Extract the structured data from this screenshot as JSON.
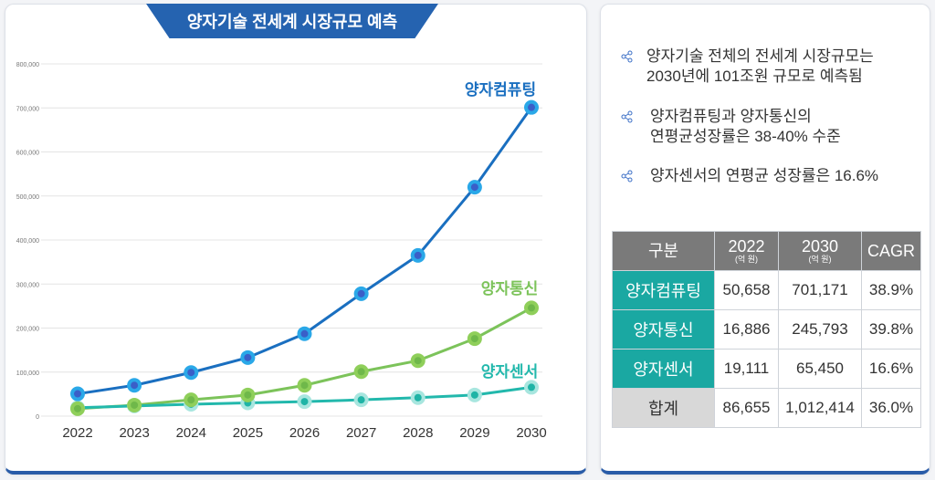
{
  "title": "양자기술 전세계 시장규모 예측",
  "chart_data": {
    "type": "line",
    "title": "양자기술 전세계 시장규모 예측",
    "x": [
      2022,
      2023,
      2024,
      2025,
      2026,
      2027,
      2028,
      2029,
      2030
    ],
    "ylim": [
      0,
      800000
    ],
    "yticks": [
      "0",
      "100,000",
      "200,000",
      "300,000",
      "400,000",
      "500,000",
      "600,000",
      "700,000",
      "800,000"
    ],
    "ytick_values": [
      0,
      100000,
      200000,
      300000,
      400000,
      500000,
      600000,
      700000,
      800000
    ],
    "grid": true,
    "series": [
      {
        "name": "양자컴퓨팅",
        "color": "#1a6fc0",
        "values": [
          50658,
          70000,
          99000,
          133000,
          187000,
          278000,
          365000,
          520000,
          701171
        ]
      },
      {
        "name": "양자통신",
        "color": "#7cc35a",
        "values": [
          16886,
          25000,
          37000,
          48000,
          70000,
          101000,
          126000,
          176000,
          245793
        ]
      },
      {
        "name": "양자센서",
        "color": "#22b8ac",
        "values": [
          19111,
          23000,
          27000,
          30000,
          33000,
          37000,
          42000,
          48000,
          65450
        ]
      }
    ]
  },
  "bullets": [
    "양자기술 전체의 전세계 시장규모는\n2030년에 101조원 규모로 예측됨",
    "양자컴퓨팅과 양자통신의\n연평균성장률은 38-40% 수준",
    "양자센서의 연평균 성장률은 16.6%"
  ],
  "table": {
    "headers": [
      {
        "label": "구분",
        "unit": ""
      },
      {
        "label": "2022",
        "unit": "(억 원)"
      },
      {
        "label": "2030",
        "unit": "(억 원)"
      },
      {
        "label": "CAGR",
        "unit": ""
      }
    ],
    "rows": [
      [
        "양자컴퓨팅",
        "50,658",
        "701,171",
        "38.9%"
      ],
      [
        "양자통신",
        "16,886",
        "245,793",
        "39.8%"
      ],
      [
        "양자센서",
        "19,111",
        "65,450",
        "16.6%"
      ],
      [
        "합계",
        "86,655",
        "1,012,414",
        "36.0%"
      ]
    ]
  }
}
